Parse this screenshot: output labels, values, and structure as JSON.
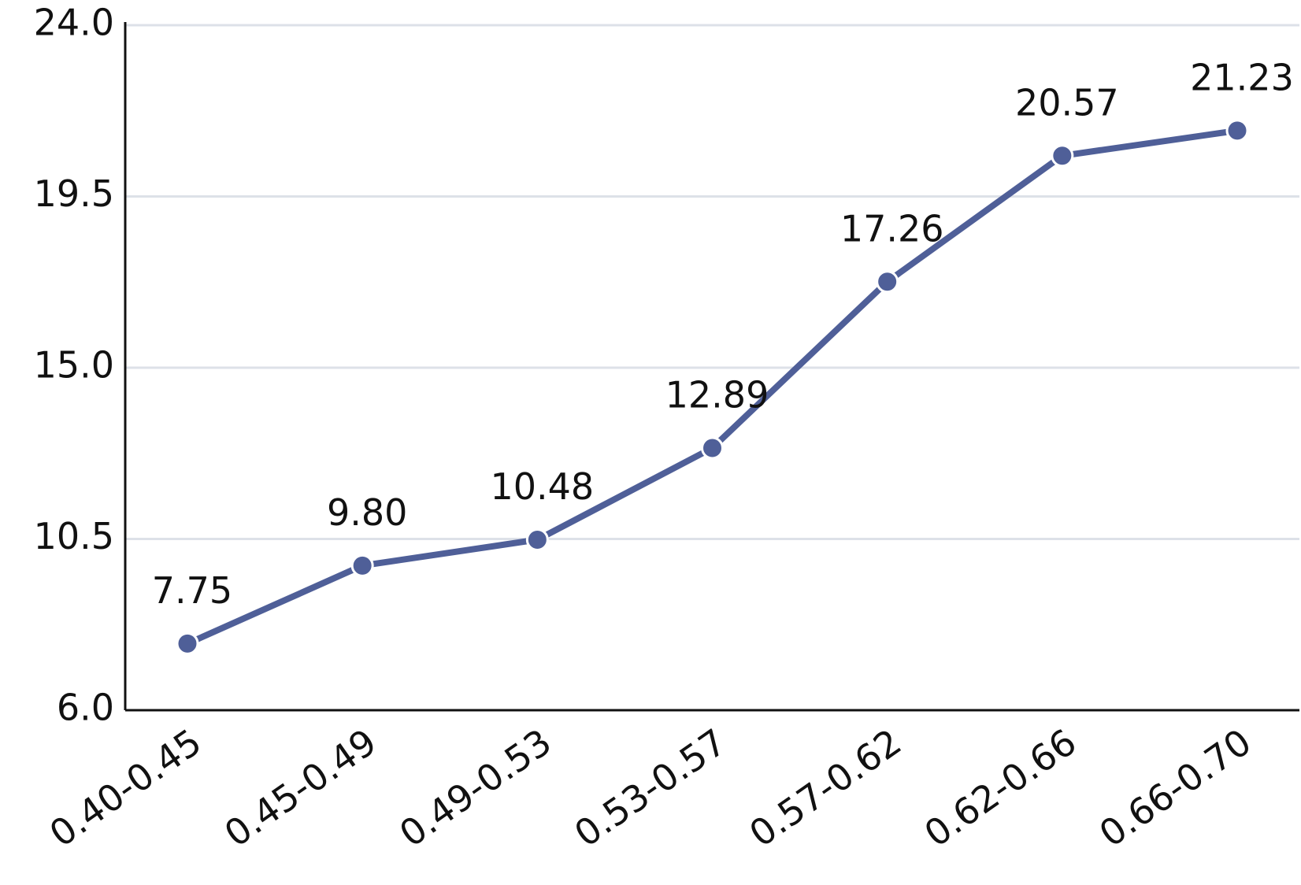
{
  "chart_data": {
    "type": "line",
    "categories": [
      "0.40-0.45",
      "0.45-0.49",
      "0.49-0.53",
      "0.53-0.57",
      "0.57-0.62",
      "0.62-0.66",
      "0.66-0.70"
    ],
    "values": [
      7.75,
      9.8,
      10.48,
      12.89,
      17.26,
      20.57,
      21.23
    ],
    "value_labels": [
      "7.75",
      "9.80",
      "10.48",
      "12.89",
      "17.26",
      "20.57",
      "21.23"
    ],
    "color": "#4f5f98",
    "ylim": [
      6,
      24
    ],
    "yticks": [
      {
        "value": 6,
        "label": "6.0"
      },
      10.5,
      {
        "value": 15,
        "label": "15.0"
      },
      19.5,
      {
        "value": 24,
        "label": "24.0"
      }
    ],
    "grid": true
  }
}
